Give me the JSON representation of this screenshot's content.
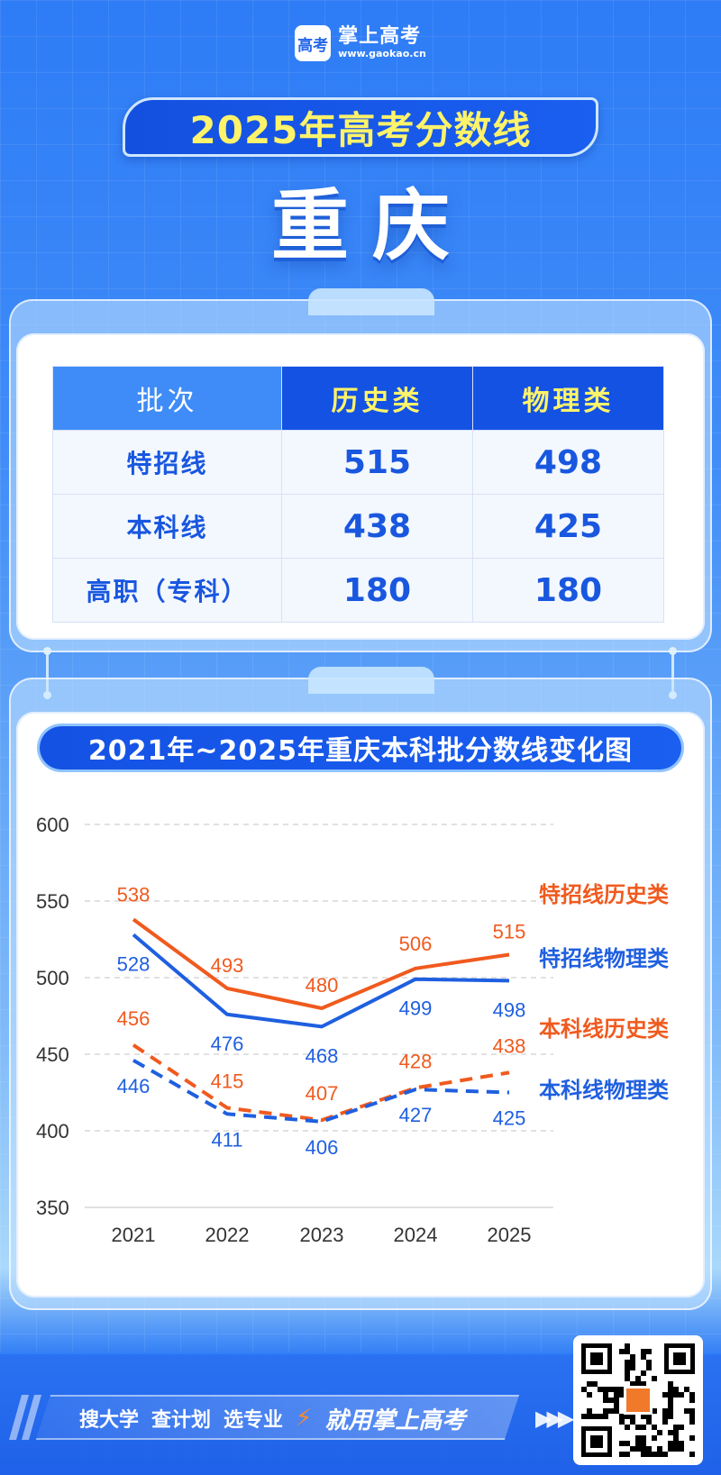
{
  "brand": {
    "name": "掌上高考",
    "url": "www.gaokao.cn",
    "logo_text": "高考"
  },
  "title": "2025年高考分数线",
  "city": "重庆",
  "table": {
    "headers": [
      "批次",
      "历史类",
      "物理类"
    ],
    "rows": [
      {
        "name": "特招线",
        "history": "515",
        "physics": "498"
      },
      {
        "name": "本科线",
        "history": "438",
        "physics": "425"
      },
      {
        "name": "高职（专科）",
        "history": "180",
        "physics": "180"
      }
    ]
  },
  "chart_title": "2021年~2025年重庆本科批分数线变化图",
  "chart_data": {
    "type": "line",
    "title": "2021年~2025年重庆本科批分数线变化图",
    "x": [
      "2021",
      "2022",
      "2023",
      "2024",
      "2025"
    ],
    "ylim": [
      350,
      600
    ],
    "yticks": [
      600,
      550,
      500,
      450,
      400,
      350
    ],
    "grid": true,
    "legend_placement": "right",
    "series": [
      {
        "name": "特招线历史类",
        "values": [
          538,
          493,
          480,
          506,
          515
        ],
        "color": "#f05a1e",
        "style": "solid"
      },
      {
        "name": "特招线物理类",
        "values": [
          528,
          476,
          468,
          499,
          498
        ],
        "color": "#1f5fe0",
        "style": "solid"
      },
      {
        "name": "本科线历史类",
        "values": [
          456,
          415,
          407,
          428,
          438
        ],
        "color": "#f05a1e",
        "style": "dashed"
      },
      {
        "name": "本科线物理类",
        "values": [
          446,
          411,
          406,
          427,
          425
        ],
        "color": "#1f5fe0",
        "style": "dashed"
      }
    ]
  },
  "footer": {
    "slogans": [
      "搜大学",
      "查计划",
      "选专业"
    ],
    "main_slogan": "就用掌上高考"
  },
  "colors": {
    "accent": "#1452e4",
    "highlight": "#fff36a",
    "orange": "#f05a1e",
    "blue": "#1f5fe0"
  },
  "icons": {
    "bolt": "bolt-icon",
    "arrows": "double-arrow-icon",
    "qr": "qr-code-icon"
  }
}
